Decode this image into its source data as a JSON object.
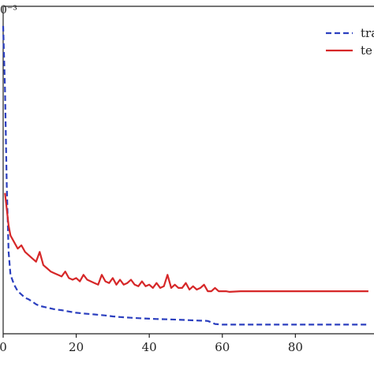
{
  "chart_data": {
    "type": "line",
    "title": "",
    "xlabel": "",
    "ylabel": "",
    "y_scale_label": "0⁻³",
    "xlim": [
      0,
      100
    ],
    "ylim": [
      0,
      1
    ],
    "grid": false,
    "legend_position": "top-right",
    "x_ticks": [
      {
        "value": 0,
        "label": "0"
      },
      {
        "value": 20,
        "label": "20"
      },
      {
        "value": 40,
        "label": "40"
      },
      {
        "value": 60,
        "label": "60"
      },
      {
        "value": 80,
        "label": "80"
      }
    ],
    "series": [
      {
        "name": "tra",
        "style": "dashed",
        "color": "#2b3fbf",
        "x": [
          0,
          0.5,
          1,
          1.5,
          2,
          3,
          4,
          5,
          6,
          7,
          8,
          9,
          10,
          12,
          14,
          16,
          18,
          20,
          22,
          25,
          28,
          30,
          32,
          35,
          38,
          40,
          42,
          45,
          48,
          50,
          52,
          54,
          55,
          56,
          57,
          58,
          60,
          65,
          70,
          75,
          80,
          85,
          90,
          95,
          100
        ],
        "y": [
          0.94,
          0.75,
          0.45,
          0.25,
          0.18,
          0.15,
          0.13,
          0.12,
          0.11,
          0.105,
          0.098,
          0.09,
          0.085,
          0.08,
          0.075,
          0.072,
          0.068,
          0.064,
          0.062,
          0.059,
          0.056,
          0.053,
          0.051,
          0.049,
          0.047,
          0.046,
          0.045,
          0.044,
          0.043,
          0.042,
          0.041,
          0.04,
          0.04,
          0.039,
          0.035,
          0.03,
          0.028,
          0.028,
          0.028,
          0.028,
          0.028,
          0.028,
          0.028,
          0.028,
          0.028
        ]
      },
      {
        "name": "te",
        "style": "solid",
        "color": "#d62728",
        "x": [
          0.5,
          1,
          1.5,
          2,
          3,
          4,
          5,
          6,
          7,
          8,
          9,
          10,
          11,
          12,
          13,
          14,
          15,
          16,
          17,
          18,
          19,
          20,
          21,
          22,
          23,
          24,
          25,
          26,
          27,
          28,
          29,
          30,
          31,
          32,
          33,
          34,
          35,
          36,
          37,
          38,
          39,
          40,
          41,
          42,
          43,
          44,
          45,
          46,
          47,
          48,
          49,
          50,
          51,
          52,
          53,
          54,
          55,
          56,
          57,
          58,
          59,
          60,
          61,
          62,
          65,
          70,
          80,
          90,
          100
        ],
        "y": [
          0.43,
          0.38,
          0.33,
          0.3,
          0.28,
          0.26,
          0.27,
          0.25,
          0.24,
          0.23,
          0.22,
          0.25,
          0.21,
          0.2,
          0.19,
          0.185,
          0.18,
          0.175,
          0.19,
          0.17,
          0.165,
          0.17,
          0.16,
          0.18,
          0.165,
          0.16,
          0.155,
          0.15,
          0.18,
          0.16,
          0.155,
          0.17,
          0.15,
          0.165,
          0.15,
          0.155,
          0.165,
          0.15,
          0.145,
          0.16,
          0.145,
          0.15,
          0.14,
          0.155,
          0.14,
          0.145,
          0.18,
          0.14,
          0.15,
          0.14,
          0.14,
          0.155,
          0.135,
          0.145,
          0.135,
          0.14,
          0.15,
          0.13,
          0.13,
          0.14,
          0.13,
          0.13,
          0.13,
          0.128,
          0.13,
          0.13,
          0.13,
          0.13,
          0.13
        ]
      }
    ]
  }
}
